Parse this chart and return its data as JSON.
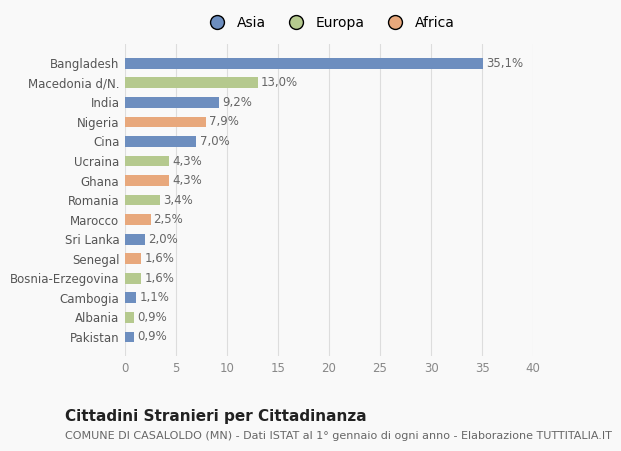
{
  "categories": [
    "Pakistan",
    "Albania",
    "Cambogia",
    "Bosnia-Erzegovina",
    "Senegal",
    "Sri Lanka",
    "Marocco",
    "Romania",
    "Ghana",
    "Ucraina",
    "Cina",
    "Nigeria",
    "India",
    "Macedonia d/N.",
    "Bangladesh"
  ],
  "values": [
    0.9,
    0.9,
    1.1,
    1.6,
    1.6,
    2.0,
    2.5,
    3.4,
    4.3,
    4.3,
    7.0,
    7.9,
    9.2,
    13.0,
    35.1
  ],
  "labels": [
    "0,9%",
    "0,9%",
    "1,1%",
    "1,6%",
    "1,6%",
    "2,0%",
    "2,5%",
    "3,4%",
    "4,3%",
    "4,3%",
    "7,0%",
    "7,9%",
    "9,2%",
    "13,0%",
    "35,1%"
  ],
  "colors": [
    "#6d8ebf",
    "#b5c98e",
    "#6d8ebf",
    "#b5c98e",
    "#e8a87c",
    "#6d8ebf",
    "#e8a87c",
    "#b5c98e",
    "#e8a87c",
    "#b5c98e",
    "#6d8ebf",
    "#e8a87c",
    "#6d8ebf",
    "#b5c98e",
    "#6d8ebf"
  ],
  "legend_labels": [
    "Asia",
    "Europa",
    "Africa"
  ],
  "legend_colors": [
    "#6d8ebf",
    "#b5c98e",
    "#e8a87c"
  ],
  "title": "Cittadini Stranieri per Cittadinanza",
  "subtitle": "COMUNE DI CASALOLDO (MN) - Dati ISTAT al 1° gennaio di ogni anno - Elaborazione TUTTITALIA.IT",
  "xlim": [
    0,
    40
  ],
  "xticks": [
    0,
    5,
    10,
    15,
    20,
    25,
    30,
    35,
    40
  ],
  "background_color": "#f9f9f9",
  "bar_height": 0.55,
  "title_fontsize": 11,
  "subtitle_fontsize": 8,
  "label_fontsize": 8.5,
  "tick_fontsize": 8.5,
  "legend_fontsize": 10
}
